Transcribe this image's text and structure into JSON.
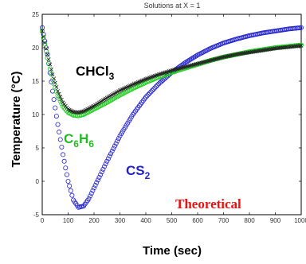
{
  "chart_data": {
    "type": "scatter",
    "title": "Solutions at X = 1",
    "xlabel": "Time (sec)",
    "ylabel": "Temperature (°C)",
    "xlim": [
      0,
      1000
    ],
    "ylim": [
      -5,
      25
    ],
    "xticks": [
      "0",
      "100",
      "200",
      "300",
      "400",
      "500",
      "600",
      "700",
      "800",
      "900",
      "1000"
    ],
    "yticks": [
      "-5",
      "0",
      "5",
      "10",
      "15",
      "20",
      "25"
    ],
    "grid": false,
    "series": [
      {
        "name": "CHCl3",
        "label": {
          "base": "CHCl",
          "sub": "3"
        },
        "color": "#222222",
        "marker": "x",
        "points": [
          [
            0,
            22.5
          ],
          [
            20,
            19
          ],
          [
            40,
            16
          ],
          [
            60,
            13.5
          ],
          [
            80,
            11.8
          ],
          [
            100,
            10.8
          ],
          [
            120,
            10.4
          ],
          [
            140,
            10.3
          ],
          [
            160,
            10.5
          ],
          [
            200,
            11.3
          ],
          [
            250,
            12.5
          ],
          [
            300,
            13.6
          ],
          [
            350,
            14.5
          ],
          [
            400,
            15.3
          ],
          [
            450,
            16
          ],
          [
            500,
            16.6
          ],
          [
            550,
            17.1
          ],
          [
            600,
            17.6
          ],
          [
            650,
            18.1
          ],
          [
            700,
            18.6
          ],
          [
            750,
            19
          ],
          [
            800,
            19.3
          ],
          [
            850,
            19.6
          ],
          [
            900,
            19.9
          ],
          [
            950,
            20.1
          ],
          [
            1000,
            20.3
          ]
        ]
      },
      {
        "name": "C6H6",
        "label": {
          "base": "C",
          "sub": "6",
          "base2": "H",
          "sub2": "6"
        },
        "color": "#22cc22",
        "marker": "o",
        "points": [
          [
            0,
            22.5
          ],
          [
            20,
            18.5
          ],
          [
            40,
            15.2
          ],
          [
            60,
            12.8
          ],
          [
            80,
            11.2
          ],
          [
            100,
            10.3
          ],
          [
            120,
            9.9
          ],
          [
            140,
            9.8
          ],
          [
            160,
            10
          ],
          [
            200,
            10.8
          ],
          [
            250,
            11.8
          ],
          [
            300,
            12.9
          ],
          [
            350,
            13.9
          ],
          [
            400,
            14.8
          ],
          [
            450,
            15.6
          ],
          [
            500,
            16.3
          ],
          [
            550,
            16.9
          ],
          [
            600,
            17.5
          ],
          [
            650,
            18.1
          ],
          [
            700,
            18.6
          ],
          [
            750,
            19
          ],
          [
            800,
            19.4
          ],
          [
            850,
            19.7
          ],
          [
            900,
            20
          ],
          [
            950,
            20.2
          ],
          [
            1000,
            20.4
          ]
        ]
      },
      {
        "name": "CS2",
        "label": {
          "base": "CS",
          "sub": "2"
        },
        "color": "#2222cc",
        "marker": "o",
        "points": [
          [
            0,
            23
          ],
          [
            20,
            19
          ],
          [
            40,
            13.5
          ],
          [
            60,
            8.5
          ],
          [
            80,
            4
          ],
          [
            100,
            0
          ],
          [
            120,
            -2.8
          ],
          [
            140,
            -3.9
          ],
          [
            160,
            -3.7
          ],
          [
            180,
            -2.6
          ],
          [
            200,
            -1
          ],
          [
            250,
            3
          ],
          [
            300,
            6.8
          ],
          [
            350,
            10
          ],
          [
            400,
            12.6
          ],
          [
            450,
            14.6
          ],
          [
            500,
            16.3
          ],
          [
            550,
            17.7
          ],
          [
            600,
            18.9
          ],
          [
            650,
            19.9
          ],
          [
            700,
            20.7
          ],
          [
            750,
            21.3
          ],
          [
            800,
            21.8
          ],
          [
            850,
            22.2
          ],
          [
            900,
            22.5
          ],
          [
            950,
            22.8
          ],
          [
            1000,
            23
          ]
        ]
      }
    ],
    "annotation": "Theoretical",
    "annotation_color": "#ee1111"
  }
}
